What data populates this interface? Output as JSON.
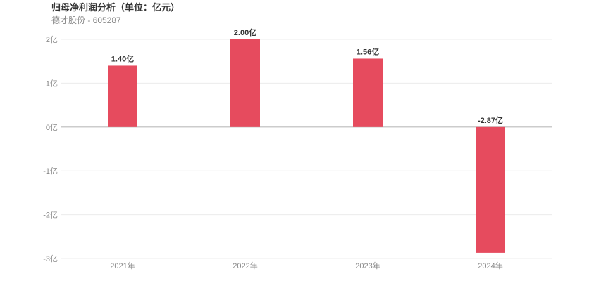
{
  "chart_data": {
    "type": "bar",
    "title": "归母净利润分析（单位：亿元）",
    "subtitle": "德才股份 - 605287",
    "categories": [
      "2021年",
      "2022年",
      "2023年",
      "2024年"
    ],
    "values": [
      1.4,
      2.0,
      1.56,
      -2.87
    ],
    "data_labels": [
      "1.40亿",
      "2.00亿",
      "1.56亿",
      "-2.87亿"
    ],
    "yticks": [
      {
        "value": 2,
        "label": "2亿"
      },
      {
        "value": 1,
        "label": "1亿"
      },
      {
        "value": 0,
        "label": "0亿"
      },
      {
        "value": -1,
        "label": "-1亿"
      },
      {
        "value": -2,
        "label": "-2亿"
      },
      {
        "value": -3,
        "label": "-3亿"
      }
    ],
    "ylim": [
      -3,
      2
    ],
    "grid": true,
    "bar_color": "#e64b5e"
  }
}
